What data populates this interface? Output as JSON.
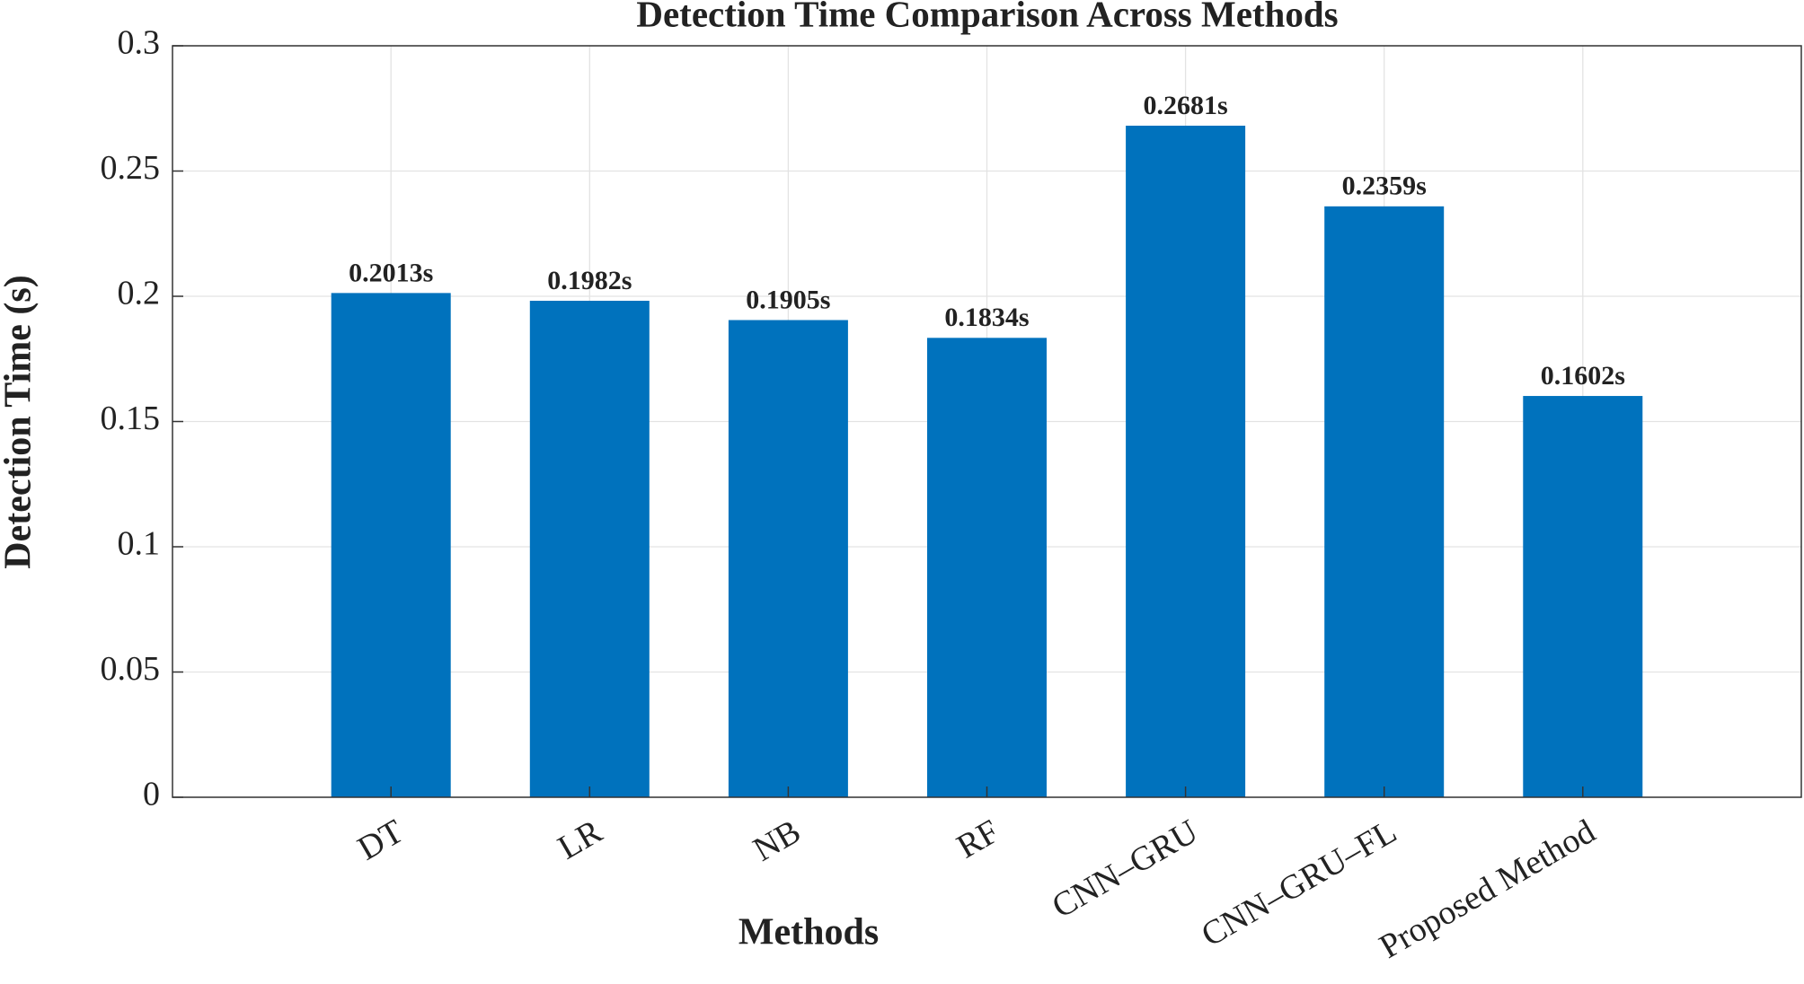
{
  "chart_data": {
    "type": "bar",
    "title": "Detection Time Comparison Across Methods",
    "xlabel": "Methods",
    "ylabel": "Detection Time (s)",
    "categories": [
      "DT",
      "LR",
      "NB",
      "RF",
      "CNN–GRU",
      "CNN–GRU–FL",
      "Proposed Method"
    ],
    "values": [
      0.2013,
      0.1982,
      0.1905,
      0.1834,
      0.2681,
      0.2359,
      0.1602
    ],
    "value_labels": [
      "0.2013s",
      "0.1982s",
      "0.1905s",
      "0.1834s",
      "0.2681s",
      "0.2359s",
      "0.1602s"
    ],
    "color": "#0072bd",
    "ylim": [
      0,
      0.3
    ],
    "yticks": [
      0,
      0.05,
      0.1,
      0.15,
      0.2,
      0.25,
      0.3
    ],
    "grid": true
  }
}
